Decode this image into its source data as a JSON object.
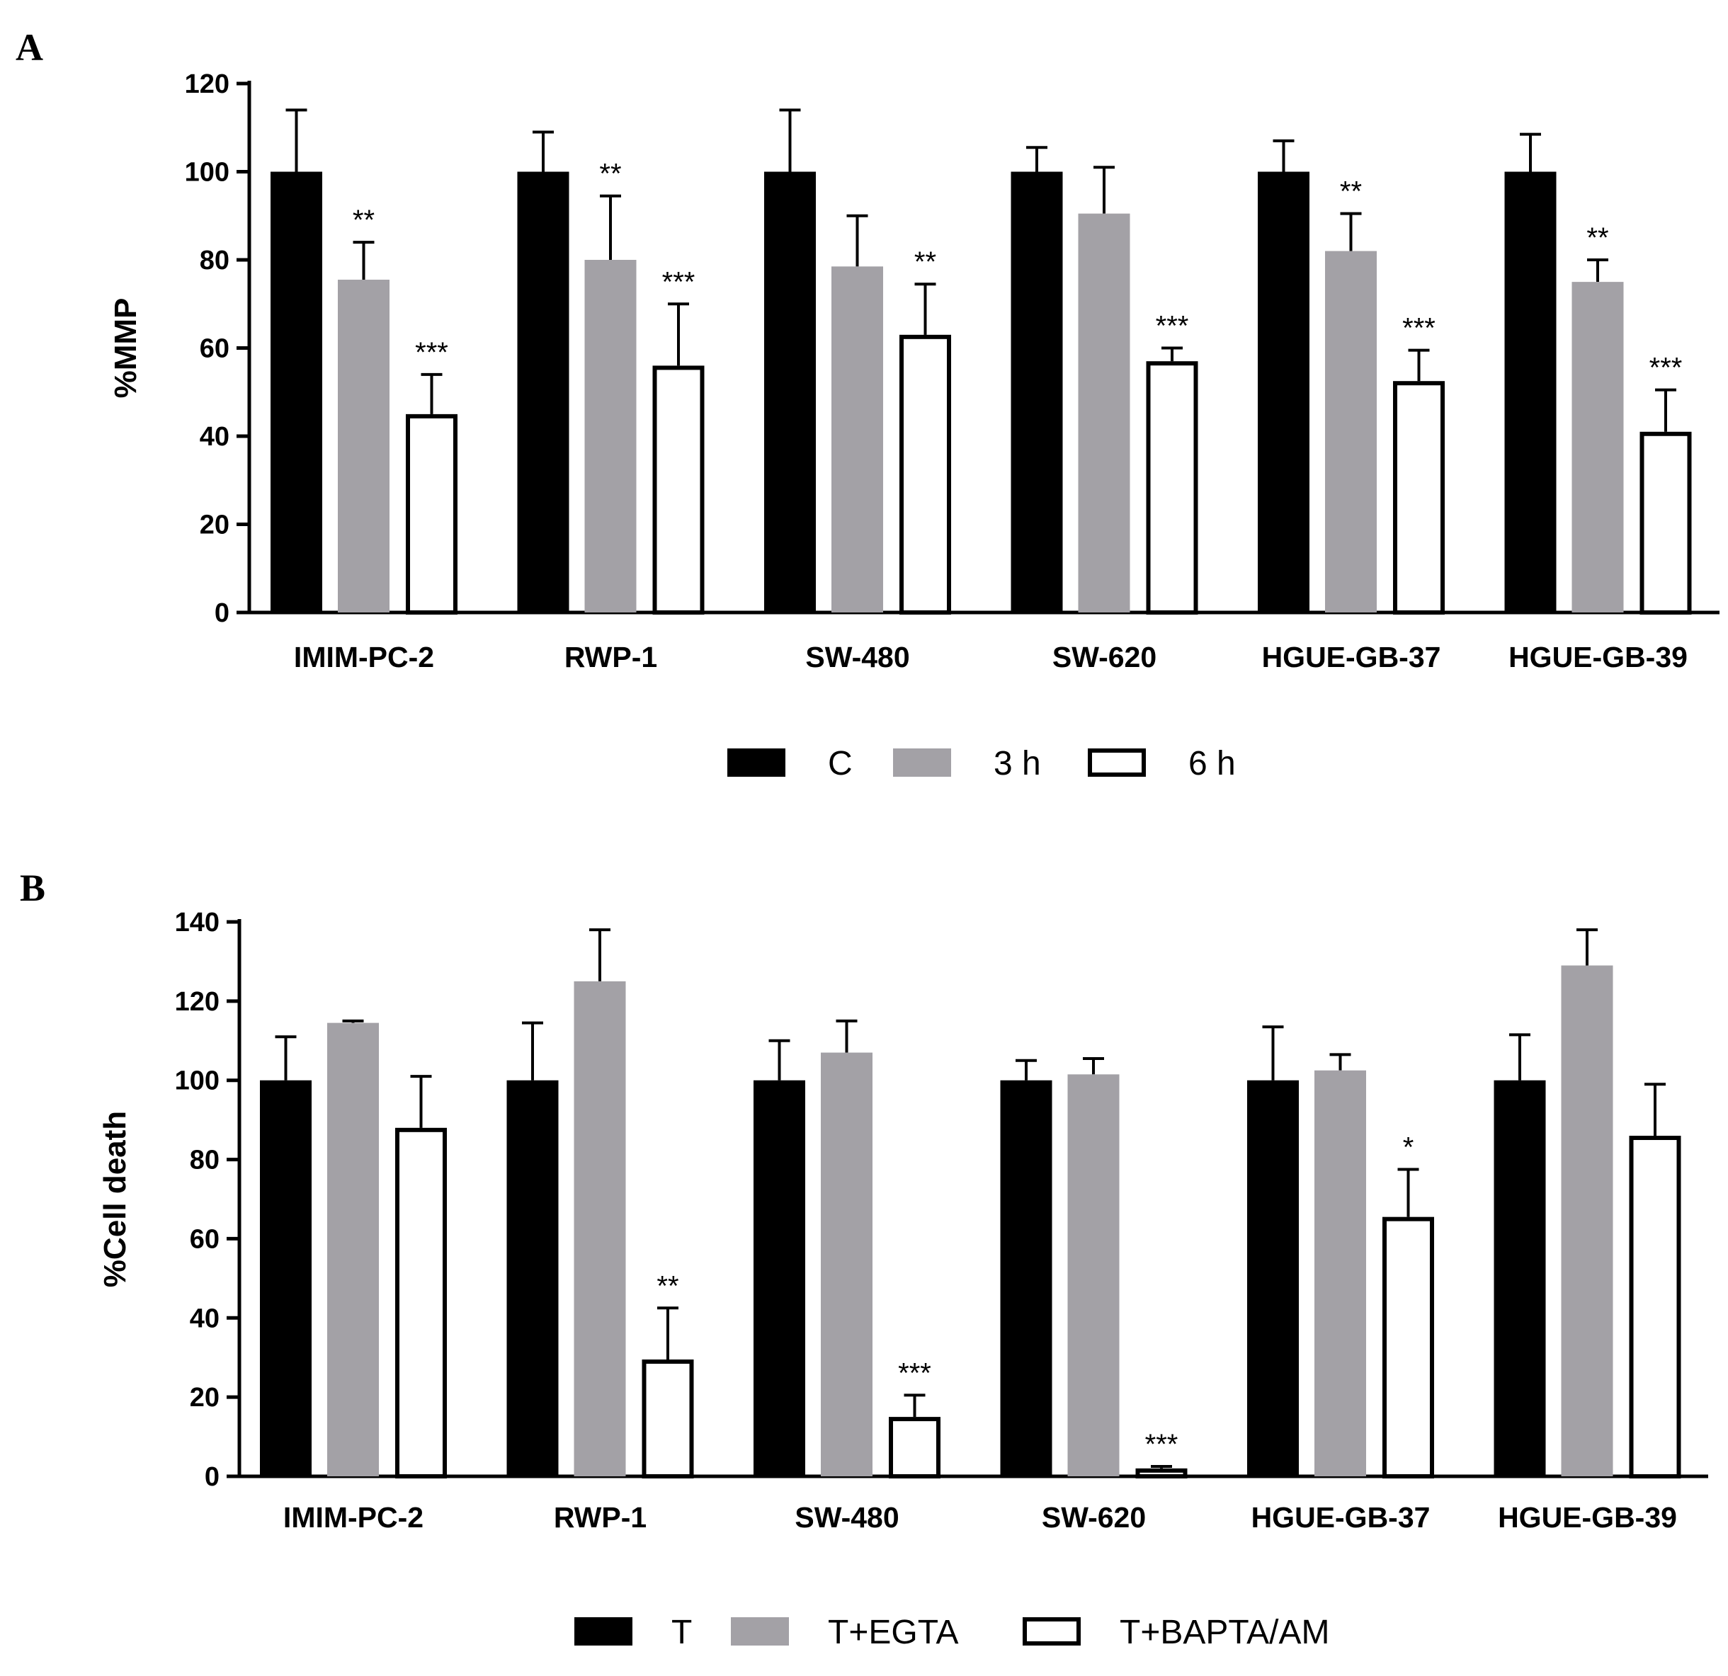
{
  "colors": {
    "black": "#000000",
    "gray": "#a3a1a6",
    "white": "#ffffff"
  },
  "chart_data": [
    {
      "panel_label": "A",
      "type": "bar",
      "ylabel": "%MMP",
      "ylim": [
        0,
        120
      ],
      "yticks": [
        0,
        20,
        40,
        60,
        80,
        100,
        120
      ],
      "categories": [
        "IMIM-PC-2",
        "RWP-1",
        "SW-480",
        "SW-620",
        "HGUE-GB-37",
        "HGUE-GB-39"
      ],
      "series": [
        {
          "name": "C",
          "fill": "black",
          "values": [
            100,
            100,
            100,
            100,
            100,
            100
          ],
          "errors": [
            14,
            9,
            14,
            5.5,
            7,
            8.5
          ],
          "sig": [
            "",
            "",
            "",
            "",
            "",
            ""
          ]
        },
        {
          "name": "3 h",
          "fill": "gray",
          "values": [
            75.5,
            80,
            78.5,
            90.5,
            82,
            75
          ],
          "errors": [
            8.5,
            14.5,
            11.5,
            10.5,
            8.5,
            5
          ],
          "sig": [
            "**",
            "**",
            "",
            "",
            "**",
            "**"
          ]
        },
        {
          "name": "6 h",
          "fill": "white",
          "values": [
            45,
            56,
            63,
            57,
            52.5,
            41
          ],
          "errors": [
            9,
            14,
            11.5,
            3,
            7,
            9.5
          ],
          "sig": [
            "***",
            "***",
            "**",
            "***",
            "***",
            "***"
          ]
        }
      ]
    },
    {
      "panel_label": "B",
      "type": "bar",
      "ylabel": "%Cell death",
      "ylim": [
        0,
        140
      ],
      "yticks": [
        0,
        20,
        40,
        60,
        80,
        100,
        120,
        140
      ],
      "categories": [
        "IMIM-PC-2",
        "RWP-1",
        "SW-480",
        "SW-620",
        "HGUE-GB-37",
        "HGUE-GB-39"
      ],
      "series": [
        {
          "name": "T",
          "fill": "black",
          "values": [
            100,
            100,
            100,
            100,
            100,
            100
          ],
          "errors": [
            11,
            14.5,
            10,
            5,
            13.5,
            11.5
          ],
          "sig": [
            "",
            "",
            "",
            "",
            "",
            ""
          ]
        },
        {
          "name": "T+EGTA",
          "fill": "gray",
          "values": [
            114.5,
            125,
            107,
            101.5,
            102.5,
            129
          ],
          "errors": [
            0.5,
            13,
            8,
            4,
            4,
            9
          ],
          "sig": [
            "",
            "",
            "",
            "",
            "",
            ""
          ]
        },
        {
          "name": "T+BAPTA/AM",
          "fill": "white",
          "values": [
            88,
            29.5,
            15,
            2,
            65.5,
            86
          ],
          "errors": [
            13,
            13,
            5.5,
            0.5,
            12,
            13
          ],
          "sig": [
            "",
            "**",
            "***",
            "***",
            "*",
            ""
          ]
        }
      ]
    }
  ]
}
